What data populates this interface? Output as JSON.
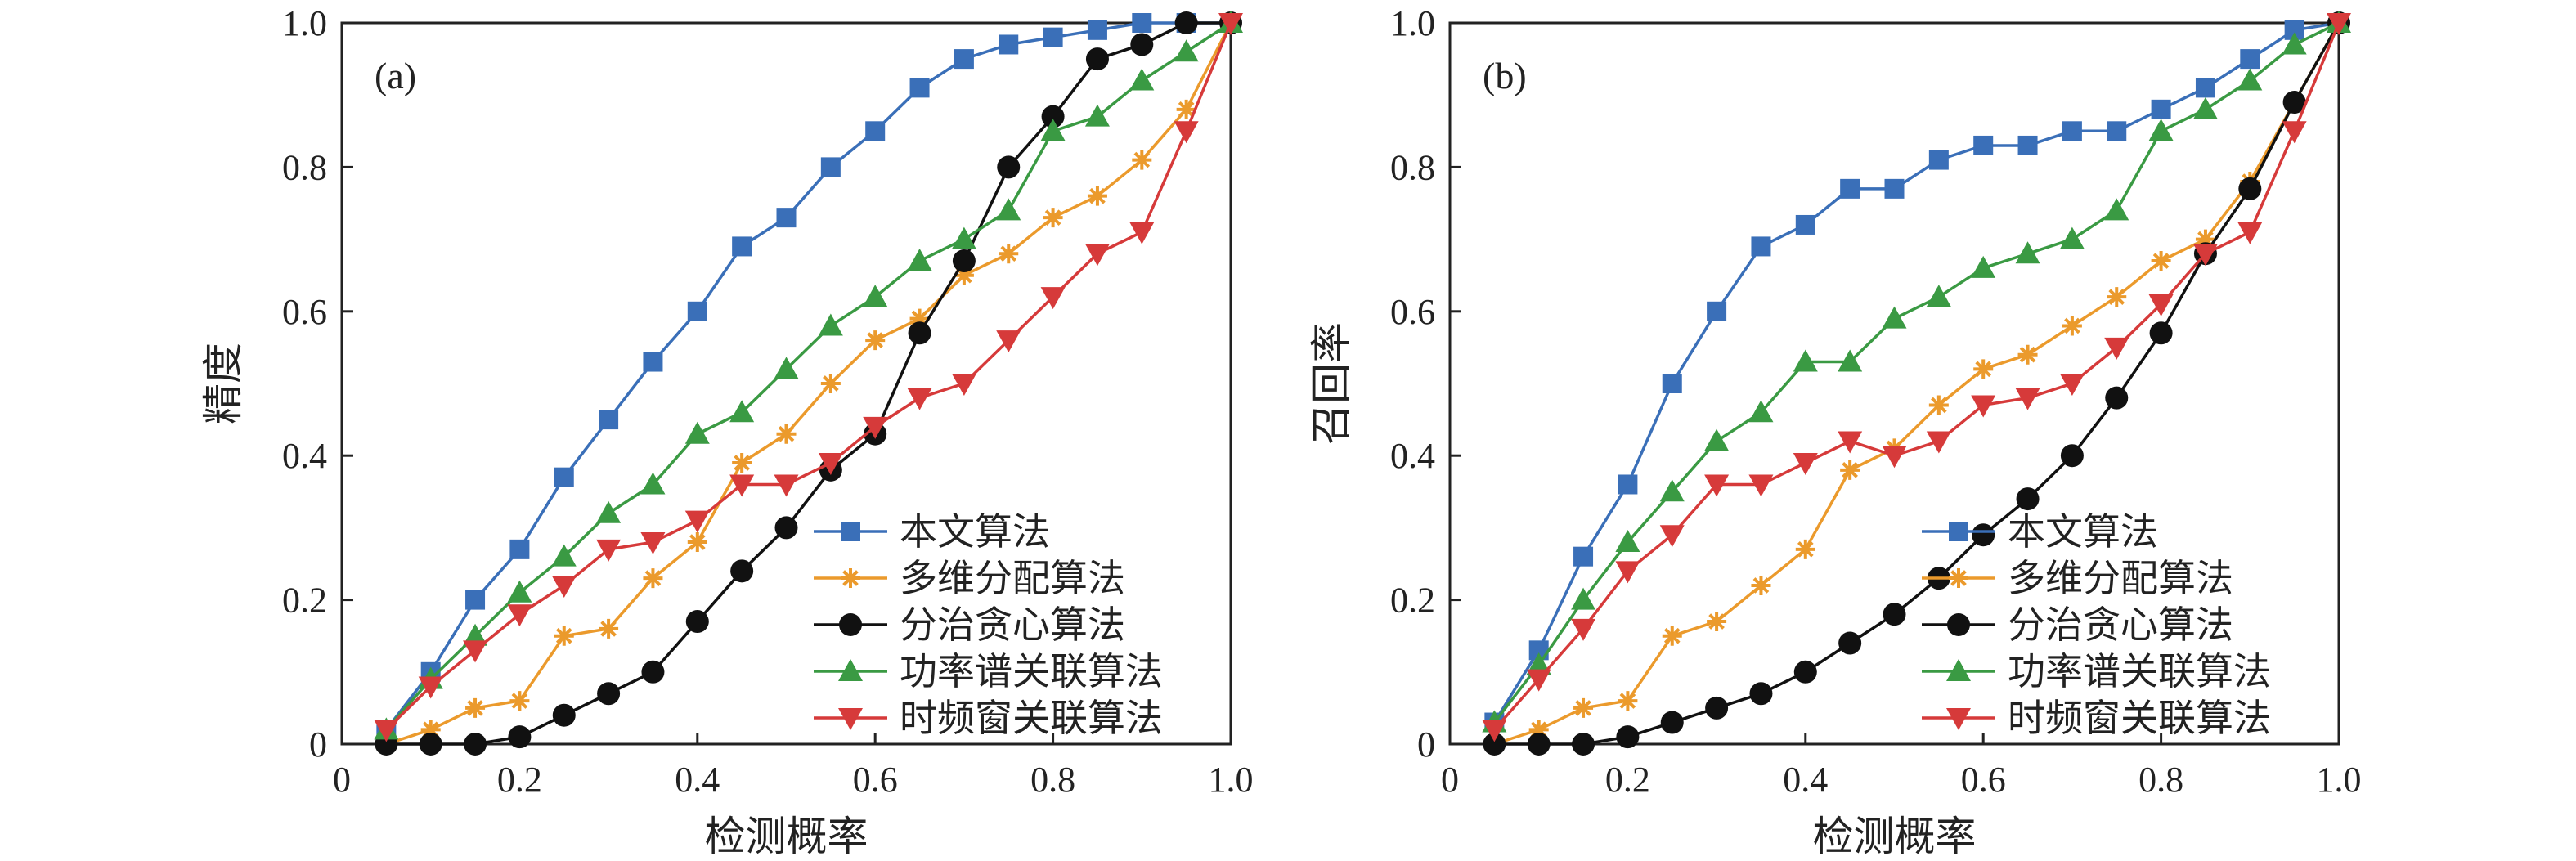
{
  "chart_data": [
    {
      "type": "line",
      "panel_label": "(a)",
      "xlabel": "检测概率",
      "ylabel": "精度",
      "xlim": [
        0,
        1.0
      ],
      "ylim": [
        0,
        1.0
      ],
      "xticks": [
        "0",
        "0.2",
        "0.4",
        "0.6",
        "0.8",
        "1.0"
      ],
      "yticks": [
        "0",
        "0.2",
        "0.4",
        "0.6",
        "0.8",
        "1.0"
      ],
      "legend_position": "bottom-right",
      "x": [
        0.05,
        0.1,
        0.15,
        0.2,
        0.25,
        0.3,
        0.35,
        0.4,
        0.45,
        0.5,
        0.55,
        0.6,
        0.65,
        0.7,
        0.75,
        0.8,
        0.85,
        0.9,
        0.95,
        1.0
      ],
      "series": [
        {
          "name": "本文算法",
          "color": "#3a6fb8",
          "marker": "square",
          "values": [
            0.02,
            0.1,
            0.2,
            0.27,
            0.37,
            0.45,
            0.53,
            0.6,
            0.69,
            0.73,
            0.8,
            0.85,
            0.91,
            0.95,
            0.97,
            0.98,
            0.99,
            1.0,
            1.0,
            1.0
          ]
        },
        {
          "name": "多维分配算法",
          "color": "#eb9a2c",
          "marker": "asterisk",
          "values": [
            0.0,
            0.02,
            0.05,
            0.06,
            0.15,
            0.16,
            0.23,
            0.28,
            0.39,
            0.43,
            0.5,
            0.56,
            0.59,
            0.65,
            0.68,
            0.73,
            0.76,
            0.81,
            0.88,
            1.0
          ]
        },
        {
          "name": "分治贪心算法",
          "color": "#111111",
          "marker": "circle",
          "values": [
            0.0,
            0.0,
            0.0,
            0.01,
            0.04,
            0.07,
            0.1,
            0.17,
            0.24,
            0.3,
            0.38,
            0.43,
            0.57,
            0.67,
            0.8,
            0.87,
            0.95,
            0.97,
            1.0,
            1.0
          ]
        },
        {
          "name": "功率谱关联算法",
          "color": "#3a9a43",
          "marker": "triangle-up",
          "values": [
            0.02,
            0.09,
            0.15,
            0.21,
            0.26,
            0.32,
            0.36,
            0.43,
            0.46,
            0.52,
            0.58,
            0.62,
            0.67,
            0.7,
            0.74,
            0.85,
            0.87,
            0.92,
            0.96,
            1.0
          ]
        },
        {
          "name": "时频窗关联算法",
          "color": "#d63a3a",
          "marker": "triangle-down",
          "values": [
            0.02,
            0.08,
            0.13,
            0.18,
            0.22,
            0.27,
            0.28,
            0.31,
            0.36,
            0.36,
            0.39,
            0.44,
            0.48,
            0.5,
            0.56,
            0.62,
            0.68,
            0.71,
            0.85,
            1.0
          ]
        }
      ]
    },
    {
      "type": "line",
      "panel_label": "(b)",
      "xlabel": "检测概率",
      "ylabel": "召回率",
      "xlim": [
        0,
        1.0
      ],
      "ylim": [
        0,
        1.0
      ],
      "xticks": [
        "0",
        "0.2",
        "0.4",
        "0.6",
        "0.8",
        "1.0"
      ],
      "yticks": [
        "0",
        "0.2",
        "0.4",
        "0.6",
        "0.8",
        "1.0"
      ],
      "legend_position": "bottom-right",
      "x": [
        0.05,
        0.1,
        0.15,
        0.2,
        0.25,
        0.3,
        0.35,
        0.4,
        0.45,
        0.5,
        0.55,
        0.6,
        0.65,
        0.7,
        0.75,
        0.8,
        0.85,
        0.9,
        0.95,
        1.0
      ],
      "series": [
        {
          "name": "本文算法",
          "color": "#3a6fb8",
          "marker": "square",
          "values": [
            0.03,
            0.13,
            0.26,
            0.36,
            0.5,
            0.6,
            0.69,
            0.72,
            0.77,
            0.77,
            0.81,
            0.83,
            0.83,
            0.85,
            0.85,
            0.88,
            0.91,
            0.95,
            0.99,
            1.0
          ]
        },
        {
          "name": "多维分配算法",
          "color": "#eb9a2c",
          "marker": "asterisk",
          "values": [
            0.0,
            0.02,
            0.05,
            0.06,
            0.15,
            0.17,
            0.22,
            0.27,
            0.38,
            0.41,
            0.47,
            0.52,
            0.54,
            0.58,
            0.62,
            0.67,
            0.7,
            0.78,
            0.89,
            1.0
          ]
        },
        {
          "name": "分治贪心算法",
          "color": "#111111",
          "marker": "circle",
          "values": [
            0.0,
            0.0,
            0.0,
            0.01,
            0.03,
            0.05,
            0.07,
            0.1,
            0.14,
            0.18,
            0.23,
            0.29,
            0.34,
            0.4,
            0.48,
            0.57,
            0.68,
            0.77,
            0.89,
            1.0
          ]
        },
        {
          "name": "功率谱关联算法",
          "color": "#3a9a43",
          "marker": "triangle-up",
          "values": [
            0.03,
            0.11,
            0.2,
            0.28,
            0.35,
            0.42,
            0.46,
            0.53,
            0.53,
            0.59,
            0.62,
            0.66,
            0.68,
            0.7,
            0.74,
            0.85,
            0.88,
            0.92,
            0.97,
            1.0
          ]
        },
        {
          "name": "时频窗关联算法",
          "color": "#d63a3a",
          "marker": "triangle-down",
          "values": [
            0.02,
            0.09,
            0.16,
            0.24,
            0.29,
            0.36,
            0.36,
            0.39,
            0.42,
            0.4,
            0.42,
            0.47,
            0.48,
            0.5,
            0.55,
            0.61,
            0.68,
            0.71,
            0.85,
            1.0
          ]
        }
      ]
    }
  ]
}
